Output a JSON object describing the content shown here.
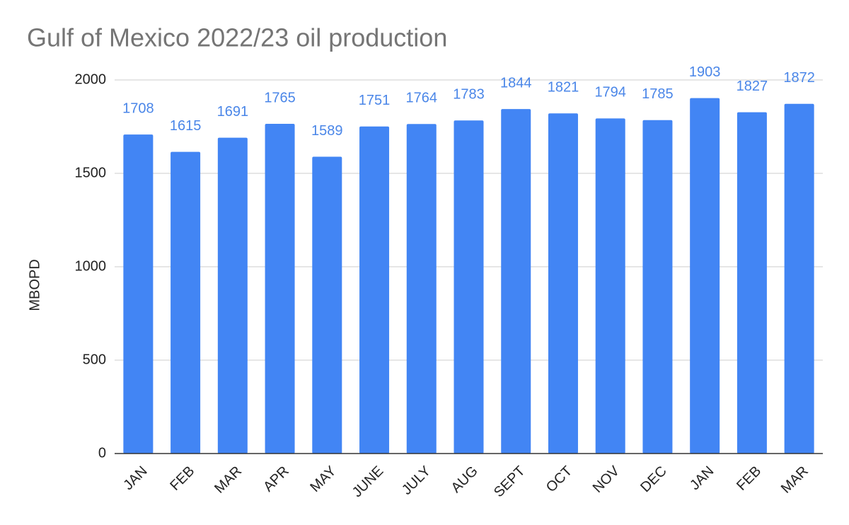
{
  "chart_data": {
    "type": "bar",
    "title": "Gulf of Mexico 2022/23 oil production",
    "ylabel": "MBOPD",
    "categories": [
      "JAN",
      "FEB",
      "MAR",
      "APR",
      "MAY",
      "JUNE",
      "JULY",
      "AUG",
      "SEPT",
      "OCT",
      "NOV",
      "DEC",
      "JAN",
      "FEB",
      "MAR"
    ],
    "values": [
      1708,
      1615,
      1691,
      1765,
      1589,
      1751,
      1764,
      1783,
      1844,
      1821,
      1794,
      1785,
      1903,
      1827,
      1872
    ],
    "color": "#4285f4",
    "label_color": "#4a86e8",
    "ylim": [
      0,
      2000
    ],
    "yticks": [
      0,
      500,
      1000,
      1500,
      2000
    ],
    "grid": true
  }
}
